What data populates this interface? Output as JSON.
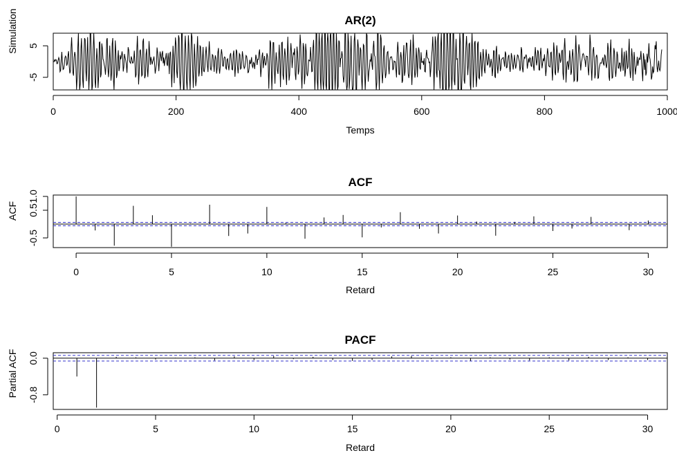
{
  "chart_data": [
    {
      "type": "line",
      "title": "AR(2)",
      "xlabel": "Temps",
      "ylabel": "Simulation",
      "xlim": [
        0,
        1000
      ],
      "ylim": [
        -9,
        9
      ],
      "xticks": [
        0,
        200,
        400,
        600,
        800,
        1000
      ],
      "xtick_labels": [
        "0",
        "200",
        "400",
        "600",
        "800",
        "1000"
      ],
      "yticks": [
        5,
        -5
      ],
      "ytick_labels": [
        "5",
        "-5"
      ],
      "series": [
        {
          "n": 991,
          "x_start": 1,
          "x_end": 991,
          "values_note_amplitude_envelope": [
            [
              0,
              1
            ],
            [
              30,
              4
            ],
            [
              60,
              5
            ],
            [
              100,
              4
            ],
            [
              140,
              3
            ],
            [
              180,
              5
            ],
            [
              220,
              5
            ],
            [
              260,
              3
            ],
            [
              300,
              2
            ],
            [
              340,
              4
            ],
            [
              380,
              3
            ],
            [
              420,
              5
            ],
            [
              460,
              8
            ],
            [
              500,
              6
            ],
            [
              540,
              4
            ],
            [
              580,
              4
            ],
            [
              620,
              6
            ],
            [
              660,
              9
            ],
            [
              700,
              4
            ],
            [
              740,
              2
            ],
            [
              780,
              3
            ],
            [
              820,
              3
            ],
            [
              860,
              4
            ],
            [
              900,
              3
            ],
            [
              940,
              4
            ],
            [
              980,
              7
            ],
            [
              991,
              6
            ]
          ]
        }
      ],
      "grid": false
    },
    {
      "type": "bar",
      "title": "ACF",
      "xlabel": "Retard",
      "ylabel": "ACF",
      "xlim": [
        -1.2,
        31
      ],
      "ylim": [
        -0.85,
        1.05
      ],
      "xticks": [
        0,
        5,
        10,
        15,
        20,
        25,
        30
      ],
      "xtick_labels": [
        "0",
        "5",
        "10",
        "15",
        "20",
        "25",
        "30"
      ],
      "yticks": [
        1.0,
        0.5,
        -0.5
      ],
      "ytick_labels": [
        "1.0",
        "0.5",
        "-0.5"
      ],
      "lags": [
        0,
        1,
        2,
        3,
        4,
        5,
        6,
        7,
        8,
        9,
        10,
        11,
        12,
        13,
        14,
        15,
        16,
        17,
        18,
        19,
        20,
        21,
        22,
        23,
        24,
        25,
        26,
        27,
        28,
        29,
        30
      ],
      "values": [
        1.0,
        -0.23,
        -0.78,
        0.66,
        0.32,
        -0.82,
        0.02,
        0.7,
        -0.43,
        -0.34,
        0.62,
        0.04,
        -0.53,
        0.24,
        0.33,
        -0.48,
        -0.12,
        0.43,
        -0.17,
        -0.34,
        0.31,
        0.09,
        -0.42,
        0.08,
        0.28,
        -0.25,
        -0.16,
        0.26,
        0.02,
        -0.22,
        0.13
      ],
      "confidence_band": [
        -0.062,
        0.062
      ],
      "band_color": "#3333cc",
      "grid": false
    },
    {
      "type": "bar",
      "title": "PACF",
      "xlabel": "Retard",
      "ylabel": "Partial ACF",
      "xlim": [
        -0.2,
        31
      ],
      "ylim": [
        -1.12,
        0.12
      ],
      "xticks": [
        0,
        5,
        10,
        15,
        20,
        25,
        30
      ],
      "xtick_labels": [
        "0",
        "5",
        "10",
        "15",
        "20",
        "25",
        "30"
      ],
      "yticks": [
        0.0,
        -0.8
      ],
      "ytick_labels": [
        "0.0",
        "-0.8"
      ],
      "lags": [
        1,
        2,
        3,
        4,
        5,
        6,
        7,
        8,
        9,
        10,
        11,
        12,
        13,
        14,
        15,
        16,
        17,
        18,
        19,
        20,
        21,
        22,
        23,
        24,
        25,
        26,
        27,
        28,
        29,
        30
      ],
      "values": [
        -0.4,
        -1.08,
        0.03,
        0.02,
        -0.03,
        0.01,
        0.02,
        -0.05,
        0.04,
        -0.04,
        0.05,
        -0.02,
        0.03,
        -0.04,
        -0.06,
        -0.04,
        0.04,
        0.05,
        -0.02,
        0.02,
        -0.06,
        0.02,
        -0.03,
        -0.05,
        0.02,
        -0.05,
        0.03,
        -0.04,
        0.02,
        -0.04
      ],
      "confidence_band": [
        -0.062,
        0.062
      ],
      "band_color": "#3333cc",
      "grid": false
    }
  ]
}
